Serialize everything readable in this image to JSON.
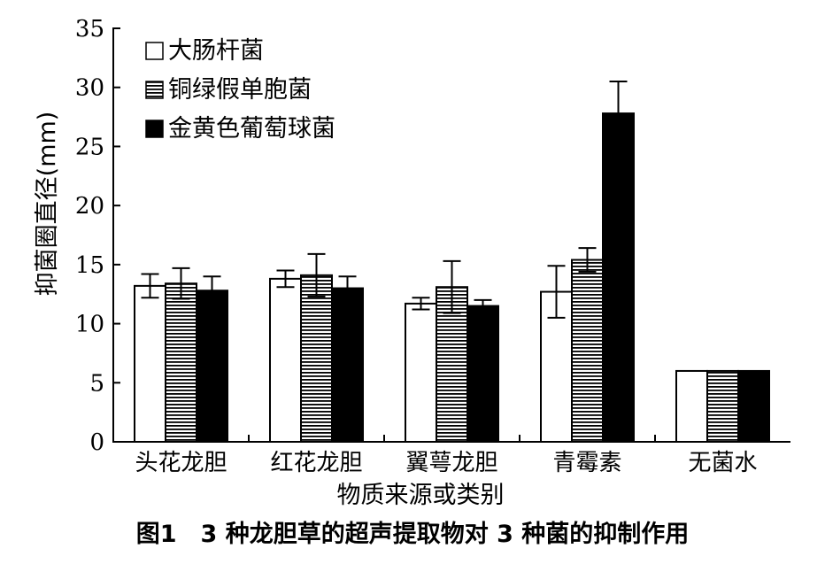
{
  "caption": "图1　3 种龙胆草的超声提取物对 3 种菌的抑制作用",
  "chart_data": {
    "type": "bar",
    "xlabel": "物质来源或类别",
    "ylabel": "抑菌圈直径(mm)",
    "ylim": [
      0,
      35
    ],
    "yticks": [
      0,
      5,
      10,
      15,
      20,
      25,
      30,
      35
    ],
    "categories": [
      "头花龙胆",
      "红花龙胆",
      "翼萼龙胆",
      "青霉素",
      "无菌水"
    ],
    "legend_position": "top-left",
    "grid": false,
    "series": [
      {
        "name": "大肠杆菌",
        "fill": "white",
        "values": [
          13.2,
          13.8,
          11.7,
          12.7,
          6.0
        ],
        "errors": [
          1.0,
          0.7,
          0.5,
          2.2,
          0.0
        ]
      },
      {
        "name": "铜绿假单胞菌",
        "fill": "hatch",
        "values": [
          13.4,
          14.1,
          13.1,
          15.4,
          6.0
        ],
        "errors": [
          1.3,
          1.8,
          2.2,
          1.0,
          0.0
        ]
      },
      {
        "name": "金黄色葡萄球菌",
        "fill": "black",
        "values": [
          12.8,
          13.0,
          11.5,
          27.8,
          6.0
        ],
        "errors": [
          1.2,
          1.0,
          0.5,
          2.7,
          0.0
        ]
      }
    ]
  }
}
